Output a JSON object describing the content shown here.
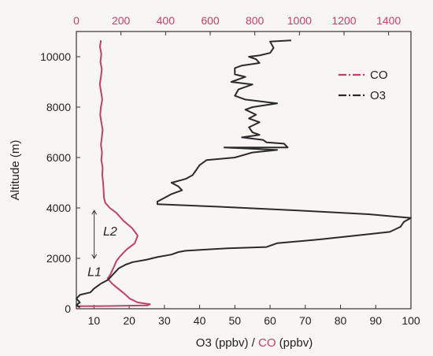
{
  "chart_data": {
    "type": "line",
    "title": "",
    "ylabel": "Altitude (m)",
    "xlabel_parts": [
      {
        "text": "O3 (ppbv) / ",
        "color": "#222222"
      },
      {
        "text": "CO",
        "color": "#c2406a"
      },
      {
        "text": " (ppbv)",
        "color": "#222222"
      }
    ],
    "ylim": [
      0,
      11000
    ],
    "y_ticks": [
      0,
      2000,
      4000,
      6000,
      8000,
      10000
    ],
    "bottom_axis": {
      "lim": [
        5,
        100
      ],
      "ticks": [
        10,
        20,
        30,
        40,
        50,
        60,
        70,
        80,
        90,
        100
      ],
      "color": "#222222"
    },
    "top_axis": {
      "lim": [
        0,
        1500
      ],
      "ticks": [
        0,
        200,
        400,
        600,
        800,
        1000,
        1200,
        1400
      ],
      "color": "#c2406a"
    },
    "grid": false,
    "legend_position": "top-right",
    "series": [
      {
        "name": "CO",
        "axis": "top",
        "color": "#c2406a",
        "points": [
          [
            110,
            10650
          ],
          [
            106,
            10400
          ],
          [
            112,
            10100
          ],
          [
            108,
            9800
          ],
          [
            114,
            9500
          ],
          [
            110,
            9200
          ],
          [
            105,
            8900
          ],
          [
            111,
            8600
          ],
          [
            116,
            8300
          ],
          [
            110,
            8000
          ],
          [
            107,
            7700
          ],
          [
            112,
            7400
          ],
          [
            118,
            7100
          ],
          [
            114,
            6800
          ],
          [
            110,
            6500
          ],
          [
            115,
            6200
          ],
          [
            112,
            5900
          ],
          [
            118,
            5600
          ],
          [
            116,
            5300
          ],
          [
            120,
            5000
          ],
          [
            122,
            4700
          ],
          [
            124,
            4400
          ],
          [
            130,
            4200
          ],
          [
            150,
            4000
          ],
          [
            180,
            3800
          ],
          [
            210,
            3500
          ],
          [
            250,
            3200
          ],
          [
            275,
            2900
          ],
          [
            262,
            2600
          ],
          [
            225,
            2350
          ],
          [
            198,
            2100
          ],
          [
            180,
            1900
          ],
          [
            170,
            1700
          ],
          [
            160,
            1500
          ],
          [
            152,
            1350
          ],
          [
            140,
            1200
          ],
          [
            160,
            1000
          ],
          [
            180,
            850
          ],
          [
            215,
            600
          ],
          [
            240,
            400
          ],
          [
            275,
            250
          ],
          [
            330,
            180
          ],
          [
            320,
            130
          ],
          [
            150,
            110
          ],
          [
            0,
            100
          ]
        ]
      },
      {
        "name": "O3",
        "axis": "bottom",
        "color": "#2b2b2b",
        "points": [
          [
            66,
            10650
          ],
          [
            60,
            10600
          ],
          [
            61,
            10350
          ],
          [
            60,
            10150
          ],
          [
            57,
            10050
          ],
          [
            54,
            10000
          ],
          [
            56,
            9900
          ],
          [
            57,
            9750
          ],
          [
            52,
            9650
          ],
          [
            50,
            9550
          ],
          [
            50,
            9300
          ],
          [
            53,
            9200
          ],
          [
            49,
            9000
          ],
          [
            55,
            8900
          ],
          [
            51,
            8700
          ],
          [
            50,
            8450
          ],
          [
            53,
            8300
          ],
          [
            62,
            8150
          ],
          [
            55,
            8000
          ],
          [
            53,
            7900
          ],
          [
            56,
            7700
          ],
          [
            54,
            7550
          ],
          [
            57,
            7400
          ],
          [
            54,
            7200
          ],
          [
            55,
            7000
          ],
          [
            57,
            6900
          ],
          [
            52,
            6800
          ],
          [
            58,
            6700
          ],
          [
            59,
            6600
          ],
          [
            64,
            6550
          ],
          [
            65,
            6400
          ],
          [
            47,
            6400
          ],
          [
            62,
            6300
          ],
          [
            55,
            6200
          ],
          [
            50,
            6000
          ],
          [
            42,
            5900
          ],
          [
            40,
            5700
          ],
          [
            39,
            5500
          ],
          [
            38,
            5300
          ],
          [
            36,
            5150
          ],
          [
            32,
            5000
          ],
          [
            34,
            4850
          ],
          [
            35,
            4700
          ],
          [
            32,
            4550
          ],
          [
            30,
            4400
          ],
          [
            28,
            4250
          ],
          [
            28,
            4150
          ],
          [
            45,
            4050
          ],
          [
            68,
            3900
          ],
          [
            88,
            3750
          ],
          [
            100,
            3600
          ],
          [
            98,
            3450
          ],
          [
            97,
            3250
          ],
          [
            94,
            3050
          ],
          [
            84,
            2900
          ],
          [
            74,
            2750
          ],
          [
            62,
            2600
          ],
          [
            59,
            2450
          ],
          [
            48,
            2400
          ],
          [
            36,
            2300
          ],
          [
            34,
            2250
          ],
          [
            32,
            2150
          ],
          [
            28,
            2050
          ],
          [
            25,
            1950
          ],
          [
            21,
            1850
          ],
          [
            19,
            1750
          ],
          [
            17,
            1600
          ],
          [
            16,
            1450
          ],
          [
            15,
            1300
          ],
          [
            14,
            1150
          ],
          [
            12,
            1000
          ],
          [
            10,
            800
          ],
          [
            9,
            650
          ],
          [
            6,
            550
          ],
          [
            5,
            400
          ],
          [
            6,
            250
          ],
          [
            5,
            150
          ],
          [
            6,
            50
          ]
        ]
      }
    ],
    "annotations": [
      {
        "text": "L2",
        "x_top": 120,
        "y": 2900
      },
      {
        "text": "L1",
        "x_top": 50,
        "y": 1300
      }
    ],
    "bracket": {
      "x_top": 80,
      "y_from": 3900,
      "y_to": 2000
    }
  }
}
